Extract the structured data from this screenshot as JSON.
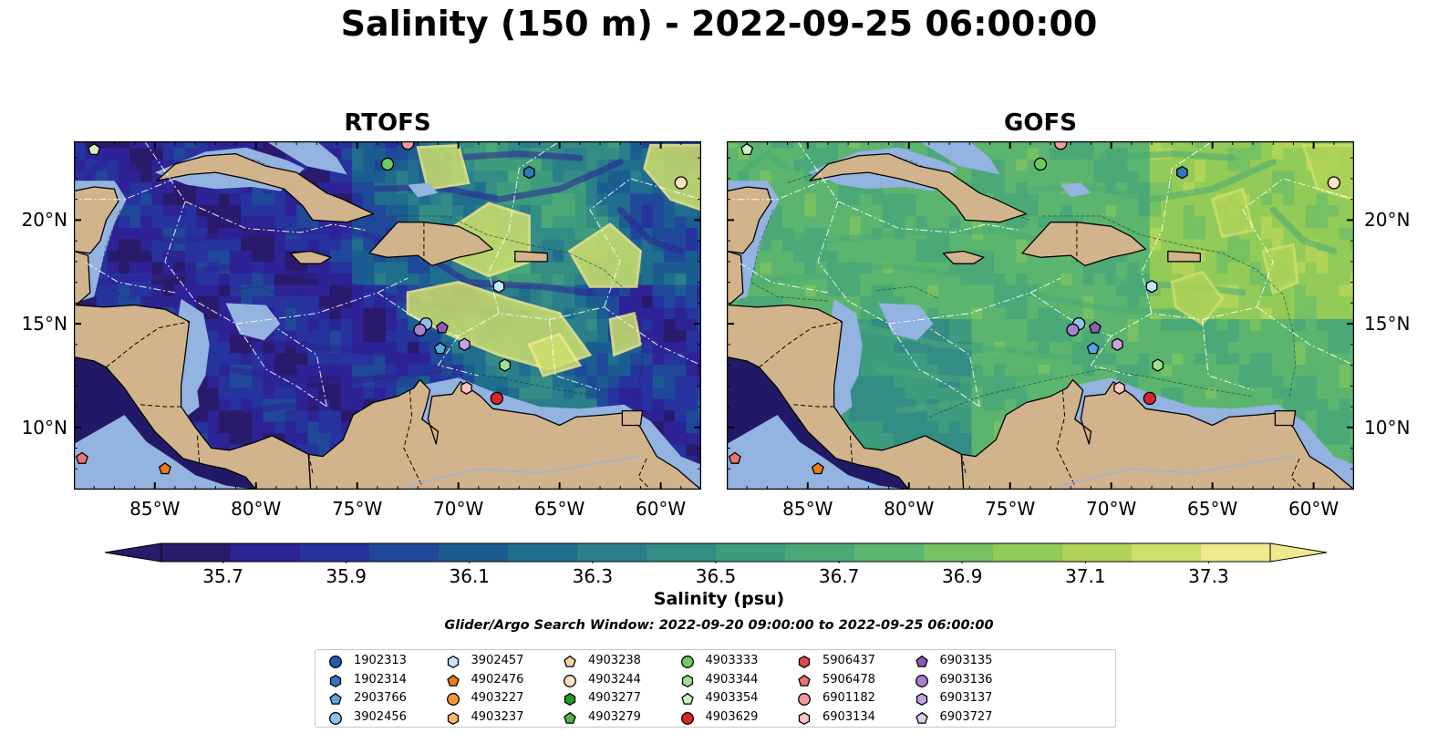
{
  "figure": {
    "title": "Salinity (150 m) - 2022-09-25 06:00:00",
    "search_window": "Glider/Argo Search Window: 2022-09-20 09:00:00 to 2022-09-25 06:00:00"
  },
  "map": {
    "extent": {
      "lon": [
        -89,
        -58
      ],
      "lat": [
        7,
        23.8
      ]
    },
    "lon_ticks": [
      {
        "value": -85,
        "label": "85°W"
      },
      {
        "value": -80,
        "label": "80°W"
      },
      {
        "value": -75,
        "label": "75°W"
      },
      {
        "value": -70,
        "label": "70°W"
      },
      {
        "value": -65,
        "label": "65°W"
      },
      {
        "value": -60,
        "label": "60°W"
      }
    ],
    "lat_ticks": [
      {
        "value": 20,
        "label": "20°N"
      },
      {
        "value": 15,
        "label": "15°N"
      },
      {
        "value": 10,
        "label": "10°N"
      }
    ],
    "panels": [
      {
        "name": "RTOFS",
        "field": "rtofs"
      },
      {
        "name": "GOFS",
        "field": "gofs"
      }
    ]
  },
  "colorbar": {
    "label": "Salinity (psu)",
    "vmin": 35.6,
    "vmax": 37.4,
    "ticks": [
      "35.7",
      "35.9",
      "36.1",
      "36.3",
      "36.5",
      "36.7",
      "36.9",
      "37.1",
      "37.3"
    ],
    "colors": [
      "#2a1a6c",
      "#2d2396",
      "#26329e",
      "#1f4898",
      "#1b5d91",
      "#206e8d",
      "#2a7f8a",
      "#338d84",
      "#3e9c7e",
      "#4aa977",
      "#5bb56e",
      "#75c163",
      "#92cb58",
      "#b0d458",
      "#cee06c",
      "#efe98d"
    ]
  },
  "colors": {
    "land": "#d2b48c",
    "shelf": "#93b3e0",
    "background_deep": "#211966"
  },
  "legend": [
    {
      "id": "1902313",
      "marker": "circle",
      "color": "#1f5fb0"
    },
    {
      "id": "1902314",
      "marker": "hexagon",
      "color": "#2f77bf"
    },
    {
      "id": "2903766",
      "marker": "pentagon",
      "color": "#58a6df"
    },
    {
      "id": "3902456",
      "marker": "circle",
      "color": "#8ec1ec"
    },
    {
      "id": "3902457",
      "marker": "hexagon",
      "color": "#c9e4f8"
    },
    {
      "id": "4902476",
      "marker": "pentagon",
      "color": "#f07a16"
    },
    {
      "id": "4903227",
      "marker": "circle",
      "color": "#f39a3c"
    },
    {
      "id": "4903237",
      "marker": "hexagon",
      "color": "#f8b768"
    },
    {
      "id": "4903238",
      "marker": "pentagon",
      "color": "#fbd3a0"
    },
    {
      "id": "4903244",
      "marker": "circle",
      "color": "#fde3c4"
    },
    {
      "id": "4903277",
      "marker": "hexagon",
      "color": "#1f9b2d"
    },
    {
      "id": "4903279",
      "marker": "pentagon",
      "color": "#4cba3f"
    },
    {
      "id": "4903333",
      "marker": "circle",
      "color": "#6ccc5f"
    },
    {
      "id": "4903344",
      "marker": "hexagon",
      "color": "#9ee08e"
    },
    {
      "id": "4903354",
      "marker": "pentagon",
      "color": "#cbf4c2"
    },
    {
      "id": "4903629",
      "marker": "circle",
      "color": "#d92527"
    },
    {
      "id": "5906437",
      "marker": "hexagon",
      "color": "#e34848"
    },
    {
      "id": "5906478",
      "marker": "pentagon",
      "color": "#ee7171"
    },
    {
      "id": "6901182",
      "marker": "circle",
      "color": "#f49a9a"
    },
    {
      "id": "6903134",
      "marker": "hexagon",
      "color": "#f9c5c5"
    },
    {
      "id": "6903135",
      "marker": "pentagon",
      "color": "#8f5bb7"
    },
    {
      "id": "6903136",
      "marker": "circle",
      "color": "#a87fd0"
    },
    {
      "id": "6903137",
      "marker": "hexagon",
      "color": "#c5a3e3"
    },
    {
      "id": "6903727",
      "marker": "pentagon",
      "color": "#e1ccf5"
    }
  ],
  "floats": [
    {
      "id": "4903354",
      "lon": -88.0,
      "lat": 23.4
    },
    {
      "id": "6901182",
      "lon": -72.5,
      "lat": 23.7
    },
    {
      "id": "4903333",
      "lon": -73.5,
      "lat": 22.7
    },
    {
      "id": "1902314",
      "lon": -66.5,
      "lat": 22.3
    },
    {
      "id": "4903244",
      "lon": -59.0,
      "lat": 21.8
    },
    {
      "id": "3902457",
      "lon": -68.0,
      "lat": 16.8
    },
    {
      "id": "3902456",
      "lon": -71.6,
      "lat": 15.0
    },
    {
      "id": "6903136",
      "lon": -71.9,
      "lat": 14.7
    },
    {
      "id": "6903135",
      "lon": -70.8,
      "lat": 14.8
    },
    {
      "id": "6903137",
      "lon": -69.7,
      "lat": 14.0
    },
    {
      "id": "2903766",
      "lon": -70.9,
      "lat": 13.8
    },
    {
      "id": "4903344",
      "lon": -67.7,
      "lat": 13.0
    },
    {
      "id": "6903134",
      "lon": -69.6,
      "lat": 11.9
    },
    {
      "id": "4903629",
      "lon": -68.1,
      "lat": 11.4
    },
    {
      "id": "5906478",
      "lon": -88.6,
      "lat": 8.5
    },
    {
      "id": "4902476",
      "lon": -84.5,
      "lat": 8.0
    }
  ]
}
